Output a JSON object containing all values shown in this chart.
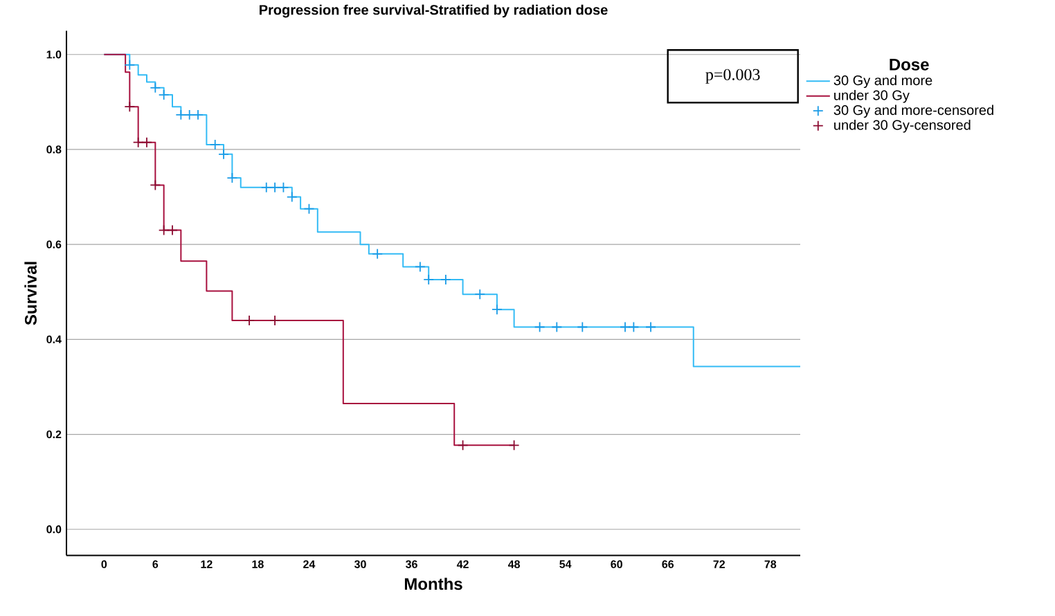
{
  "chart_data": {
    "type": "step",
    "title": "Progression free survival-Stratified by radiation dose",
    "xlabel": "Months",
    "ylabel": "Survival",
    "legend_title": "Dose",
    "legend": "right",
    "grid": "y",
    "xlim": [
      -4.4,
      81.5
    ],
    "ylim": [
      -0.055,
      1.05
    ],
    "xticks": [
      0,
      6,
      12,
      18,
      24,
      30,
      36,
      42,
      48,
      54,
      60,
      66,
      72,
      78
    ],
    "yticks": [
      {
        "value": 0,
        "label": "0.0"
      },
      {
        "value": 0.2,
        "label": "0.2"
      },
      {
        "value": 0.4,
        "label": "0.4"
      },
      {
        "value": 0.6,
        "label": "0.6"
      },
      {
        "value": 0.8,
        "label": "0.8"
      },
      {
        "value": 1,
        "label": "1.0"
      }
    ],
    "annotations": [
      "p=0.003"
    ],
    "series": [
      {
        "name": "30 Gy and more",
        "color": "#33bbf5",
        "x": [
          0,
          3,
          4,
          5,
          6,
          7,
          8,
          9,
          12,
          14,
          15,
          16,
          22,
          23,
          25,
          30,
          31,
          35,
          38,
          42,
          46,
          48,
          69,
          81.5
        ],
        "values": [
          1.0,
          0.978,
          0.957,
          0.942,
          0.93,
          0.915,
          0.89,
          0.873,
          0.81,
          0.79,
          0.74,
          0.72,
          0.7,
          0.675,
          0.626,
          0.6,
          0.58,
          0.553,
          0.526,
          0.495,
          0.463,
          0.426,
          0.343,
          0.343
        ]
      },
      {
        "name": "under 30 Gy",
        "color": "#a8103e",
        "x": [
          0,
          2.5,
          3,
          4,
          6,
          7,
          9,
          12,
          15,
          28,
          41,
          48
        ],
        "values": [
          1.0,
          0.963,
          0.89,
          0.815,
          0.725,
          0.63,
          0.565,
          0.502,
          0.44,
          0.265,
          0.177,
          0.177
        ]
      },
      {
        "name": "30 Gy and more-censored",
        "type": "scatter",
        "marker": "cross",
        "color": "#1a9be6",
        "x": [
          3,
          6,
          7,
          9,
          10,
          11,
          13,
          14,
          15,
          19,
          20,
          21,
          22,
          24,
          32,
          37,
          38,
          40,
          44,
          46,
          51,
          53,
          56,
          61,
          62,
          64
        ],
        "values": [
          0.978,
          0.93,
          0.915,
          0.873,
          0.873,
          0.873,
          0.81,
          0.79,
          0.74,
          0.72,
          0.72,
          0.72,
          0.7,
          0.675,
          0.58,
          0.553,
          0.526,
          0.526,
          0.495,
          0.463,
          0.426,
          0.426,
          0.426,
          0.426,
          0.426,
          0.426
        ]
      },
      {
        "name": "under 30 Gy-censored",
        "type": "scatter",
        "marker": "cross",
        "color": "#8b0a30",
        "x": [
          3,
          4,
          5,
          6,
          7,
          8,
          17,
          20,
          42,
          48
        ],
        "values": [
          0.89,
          0.815,
          0.815,
          0.725,
          0.63,
          0.63,
          0.44,
          0.44,
          0.177,
          0.177
        ]
      }
    ]
  }
}
